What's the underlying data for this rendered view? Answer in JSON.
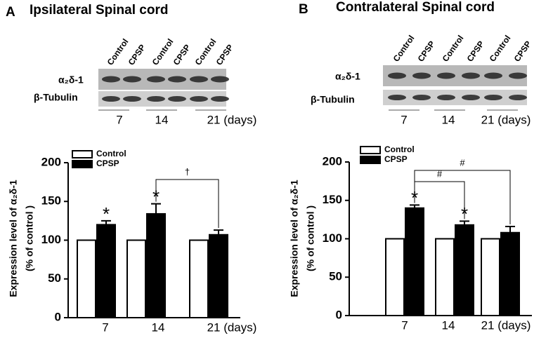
{
  "chart_data": [
    {
      "type": "bar",
      "panel_label": "A",
      "title": "Ipsilateral Spinal cord",
      "blot": {
        "lanes": [
          "Control",
          "CPSP",
          "Control",
          "CPSP",
          "Control",
          "CPSP"
        ],
        "rows": [
          "α₂δ-1",
          "β-Tubulin"
        ]
      },
      "categories": [
        "7",
        "14",
        "21 (days)"
      ],
      "ylabel": [
        "Expression  level of α₂δ-1",
        "(% of control )"
      ],
      "series": [
        {
          "name": "Control",
          "color": "#ffffff",
          "values": [
            100,
            100,
            100
          ]
        },
        {
          "name": "CPSP",
          "color": "#000000",
          "values": [
            120,
            134,
            107
          ],
          "errors": [
            5,
            13,
            6
          ]
        }
      ],
      "ylim": [
        0,
        200
      ],
      "yticks": [
        0,
        50,
        100,
        150,
        200
      ],
      "annotations": [
        "*",
        "*",
        "†"
      ]
    },
    {
      "type": "bar",
      "panel_label": "B",
      "title": "Contralateral Spinal cord",
      "blot": {
        "lanes": [
          "Control",
          "CPSP",
          "Control",
          "CPSP",
          "Control",
          "CPSP"
        ],
        "rows": [
          "α₂δ-1",
          "β-Tubulin"
        ]
      },
      "categories": [
        "7",
        "14",
        "21 (days)"
      ],
      "ylabel": [
        "Expression  level of α₂δ-1",
        "(% of control )"
      ],
      "series": [
        {
          "name": "Control",
          "color": "#ffffff",
          "values": [
            100,
            100,
            100
          ]
        },
        {
          "name": "CPSP",
          "color": "#000000",
          "values": [
            140,
            118,
            108
          ],
          "errors": [
            4,
            5,
            8
          ]
        }
      ],
      "ylim": [
        0,
        200
      ],
      "yticks": [
        0,
        50,
        100,
        150,
        200
      ],
      "annotations": [
        "*",
        "*",
        "#",
        "#"
      ]
    }
  ]
}
